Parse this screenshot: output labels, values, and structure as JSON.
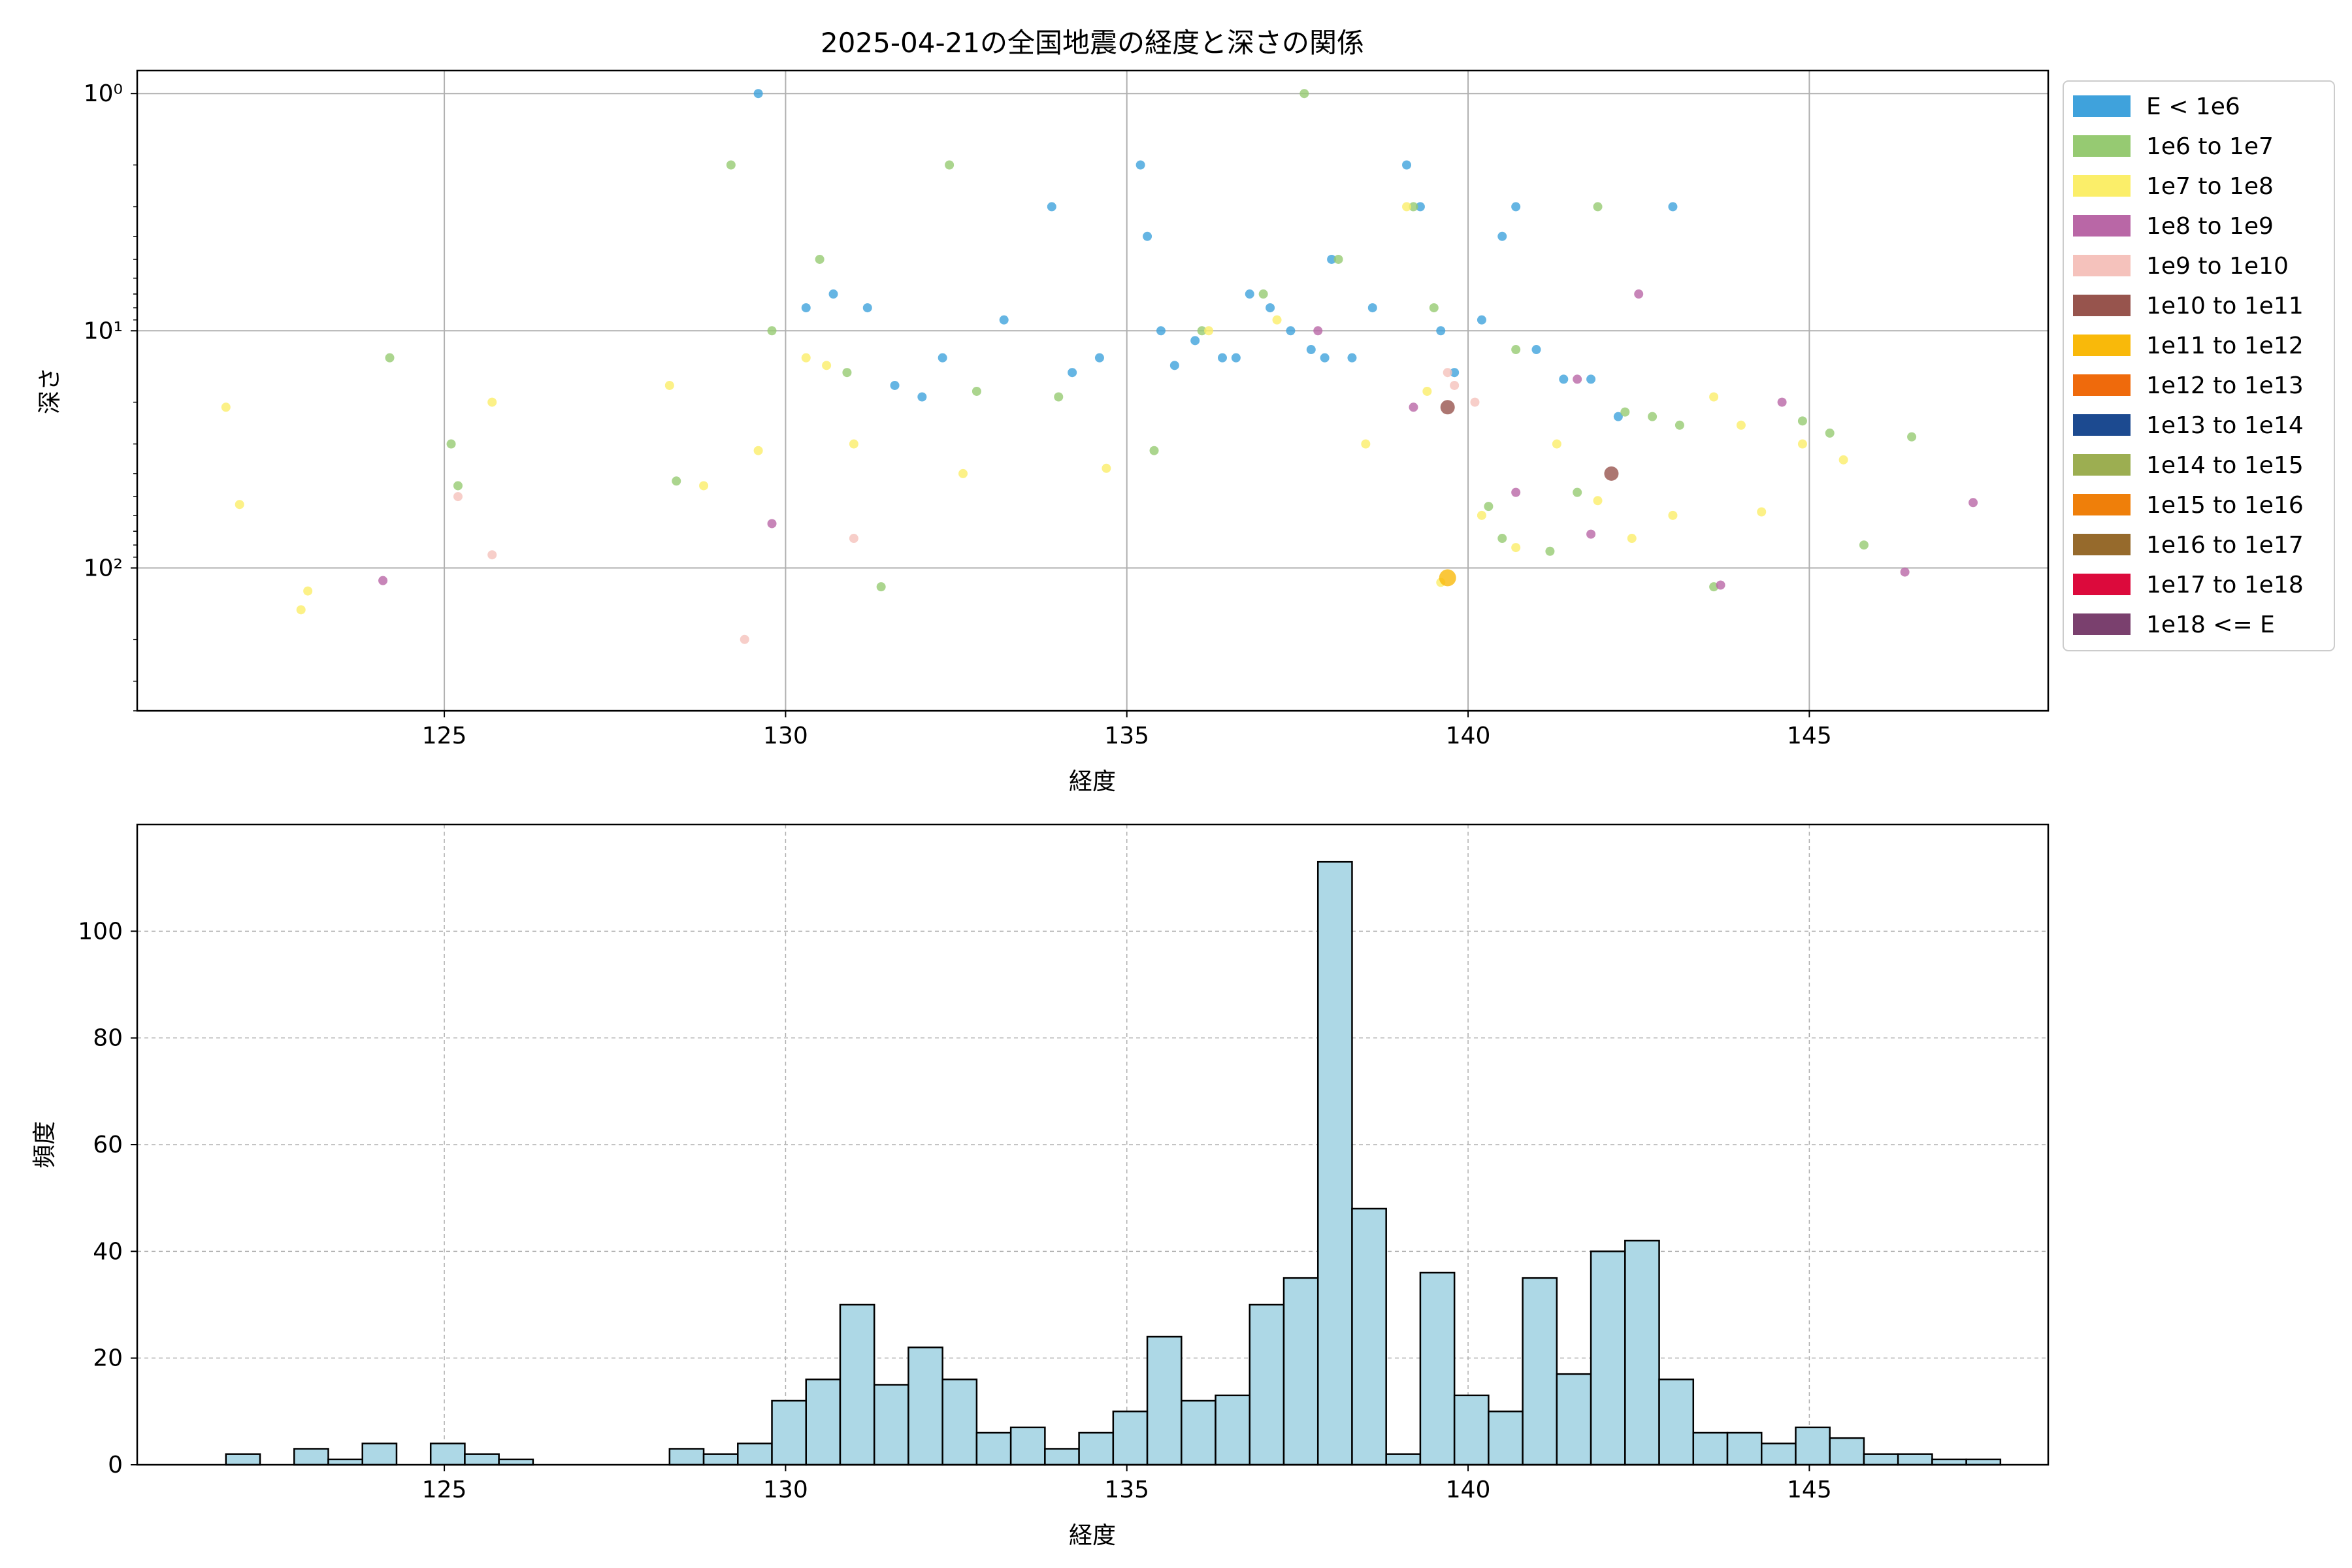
{
  "chart_data": [
    {
      "type": "scatter",
      "title": "2025-04-21の全国地震の経度と深さの関係",
      "xlabel": "経度",
      "ylabel": "深さ",
      "xlim": [
        120.5,
        148.5
      ],
      "ylim": [
        400,
        0.8
      ],
      "y_scale": "log-inverted",
      "x_ticks": [
        125,
        130,
        135,
        140,
        145
      ],
      "y_ticks": [
        {
          "value": 1,
          "label": "10⁰"
        },
        {
          "value": 10,
          "label": "10¹"
        },
        {
          "value": 100,
          "label": "10²"
        }
      ],
      "grid": true,
      "legend_position": "outside-right",
      "series": [
        {
          "name": "E < 1e6",
          "color": "#3fa2dc",
          "points": [
            [
              129.6,
              1
            ],
            [
              130.3,
              8
            ],
            [
              130.7,
              7
            ],
            [
              131.2,
              8
            ],
            [
              131.6,
              17
            ],
            [
              132.0,
              19
            ],
            [
              132.3,
              13
            ],
            [
              133.2,
              9
            ],
            [
              133.9,
              3
            ],
            [
              134.2,
              15
            ],
            [
              134.6,
              13
            ],
            [
              135.2,
              2
            ],
            [
              135.3,
              4
            ],
            [
              135.5,
              10
            ],
            [
              135.7,
              14
            ],
            [
              136.0,
              11
            ],
            [
              136.4,
              13
            ],
            [
              136.6,
              13
            ],
            [
              136.8,
              7
            ],
            [
              137.1,
              8
            ],
            [
              137.4,
              10
            ],
            [
              137.7,
              12
            ],
            [
              137.9,
              13
            ],
            [
              138.0,
              5
            ],
            [
              138.3,
              13
            ],
            [
              138.6,
              8
            ],
            [
              139.1,
              2
            ],
            [
              139.3,
              3
            ],
            [
              139.6,
              10
            ],
            [
              139.8,
              15
            ],
            [
              140.2,
              9
            ],
            [
              140.5,
              4
            ],
            [
              140.7,
              3
            ],
            [
              141.0,
              12
            ],
            [
              141.4,
              16
            ],
            [
              141.8,
              16
            ],
            [
              142.2,
              23
            ],
            [
              143.0,
              3
            ]
          ]
        },
        {
          "name": "1e6 to 1e7",
          "color": "#96ca72",
          "points": [
            [
              124.2,
              13
            ],
            [
              125.1,
              30
            ],
            [
              125.2,
              45
            ],
            [
              128.4,
              43
            ],
            [
              129.2,
              2
            ],
            [
              129.8,
              10
            ],
            [
              130.5,
              5
            ],
            [
              130.9,
              15
            ],
            [
              131.4,
              120
            ],
            [
              132.4,
              2
            ],
            [
              132.8,
              18
            ],
            [
              134.0,
              19
            ],
            [
              135.4,
              32
            ],
            [
              136.1,
              10
            ],
            [
              137.0,
              7
            ],
            [
              137.6,
              1
            ],
            [
              138.1,
              5
            ],
            [
              139.2,
              3
            ],
            [
              139.5,
              8
            ],
            [
              140.3,
              55
            ],
            [
              140.5,
              75
            ],
            [
              140.7,
              12
            ],
            [
              141.2,
              85
            ],
            [
              141.6,
              48
            ],
            [
              141.9,
              3
            ],
            [
              142.3,
              22
            ],
            [
              142.7,
              23
            ],
            [
              143.1,
              25
            ],
            [
              143.6,
              120
            ],
            [
              144.9,
              24
            ],
            [
              145.3,
              27
            ],
            [
              145.8,
              80
            ],
            [
              146.5,
              28
            ]
          ]
        },
        {
          "name": "1e7 to 1e8",
          "color": "#fbee69",
          "points": [
            [
              121.8,
              21
            ],
            [
              122.0,
              54
            ],
            [
              122.9,
              150
            ],
            [
              123.0,
              125
            ],
            [
              125.7,
              20
            ],
            [
              128.3,
              17
            ],
            [
              128.8,
              45
            ],
            [
              129.6,
              32
            ],
            [
              130.3,
              13
            ],
            [
              130.6,
              14
            ],
            [
              131.0,
              30
            ],
            [
              132.6,
              40
            ],
            [
              134.7,
              38
            ],
            [
              136.2,
              10
            ],
            [
              137.2,
              9
            ],
            [
              138.5,
              30
            ],
            [
              139.1,
              3
            ],
            [
              139.4,
              18
            ],
            [
              139.6,
              115
            ],
            [
              140.2,
              60
            ],
            [
              140.7,
              82
            ],
            [
              141.3,
              30
            ],
            [
              141.9,
              52
            ],
            [
              142.4,
              75
            ],
            [
              143.0,
              60
            ],
            [
              143.6,
              19
            ],
            [
              144.0,
              25
            ],
            [
              144.3,
              58
            ],
            [
              144.9,
              30
            ],
            [
              145.5,
              35
            ]
          ]
        },
        {
          "name": "1e8 to 1e9",
          "color": "#b967a6",
          "points": [
            [
              124.1,
              113
            ],
            [
              129.8,
              65
            ],
            [
              137.8,
              10
            ],
            [
              139.2,
              21
            ],
            [
              140.7,
              48
            ],
            [
              141.6,
              16
            ],
            [
              141.8,
              72
            ],
            [
              142.5,
              7
            ],
            [
              143.7,
              118
            ],
            [
              144.6,
              20
            ],
            [
              146.4,
              104
            ],
            [
              147.4,
              53
            ]
          ]
        },
        {
          "name": "1e9 to 1e10",
          "color": "#f5c2bc",
          "points": [
            [
              125.2,
              50
            ],
            [
              125.7,
              88
            ],
            [
              129.4,
              200
            ],
            [
              131.0,
              75
            ],
            [
              139.7,
              15
            ],
            [
              139.8,
              17
            ],
            [
              140.1,
              20
            ]
          ]
        },
        {
          "name": "1e10 to 1e11",
          "color": "#97544d",
          "points": [
            [
              139.7,
              21
            ],
            [
              142.1,
              40
            ]
          ]
        },
        {
          "name": "1e11 to 1e12",
          "color": "#f9b90a",
          "points": [
            [
              139.7,
              110
            ]
          ]
        }
      ],
      "legend": [
        {
          "label": "E < 1e6",
          "color": "#3fa2dc"
        },
        {
          "label": "1e6 to 1e7",
          "color": "#96ca72"
        },
        {
          "label": "1e7 to 1e8",
          "color": "#fbee69"
        },
        {
          "label": "1e8 to 1e9",
          "color": "#b967a6"
        },
        {
          "label": "1e9 to 1e10",
          "color": "#f5c2bc"
        },
        {
          "label": "1e10 to 1e11",
          "color": "#97544d"
        },
        {
          "label": "1e11 to 1e12",
          "color": "#f9b90a"
        },
        {
          "label": "1e12 to 1e13",
          "color": "#ef6a0c"
        },
        {
          "label": "1e13 to 1e14",
          "color": "#1c4a90"
        },
        {
          "label": "1e14 to 1e15",
          "color": "#9cae51"
        },
        {
          "label": "1e15 to 1e16",
          "color": "#ef7f0a"
        },
        {
          "label": "1e16 to 1e17",
          "color": "#966a2c"
        },
        {
          "label": "1e17 to 1e18",
          "color": "#dc0a3c"
        },
        {
          "label": "1e18 <= E",
          "color": "#7a406e"
        }
      ]
    },
    {
      "type": "bar",
      "xlabel": "経度",
      "ylabel": "頻度",
      "xlim": [
        120.5,
        148.5
      ],
      "ylim": [
        0,
        120
      ],
      "x_ticks": [
        125,
        130,
        135,
        140,
        145
      ],
      "y_ticks": [
        0,
        20,
        40,
        60,
        80,
        100
      ],
      "grid": true,
      "bar_color": "#add8e6",
      "edge_color": "#000000",
      "bin_start": 121.8,
      "bin_width": 0.5,
      "values": [
        2,
        0,
        3,
        1,
        4,
        0,
        4,
        2,
        1,
        0,
        0,
        0,
        0,
        3,
        2,
        4,
        12,
        16,
        30,
        15,
        22,
        16,
        6,
        7,
        3,
        6,
        10,
        24,
        12,
        13,
        30,
        35,
        113,
        48,
        2,
        36,
        13,
        10,
        35,
        17,
        40,
        42,
        16,
        6,
        6,
        4,
        7,
        5,
        2,
        2,
        1,
        1
      ]
    }
  ]
}
